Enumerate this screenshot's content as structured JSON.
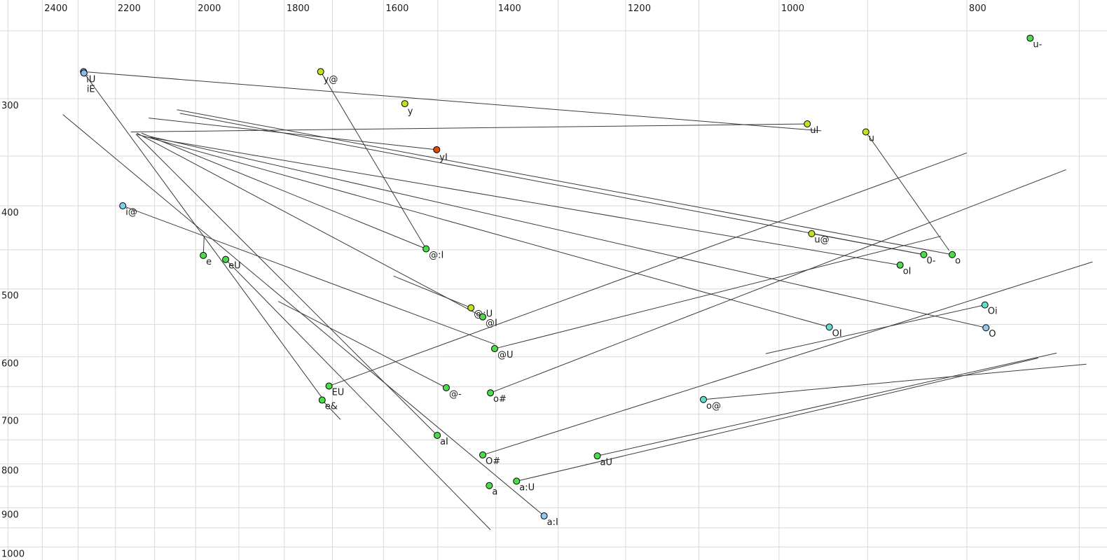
{
  "chart_data": {
    "type": "scatter",
    "title": "",
    "description": "Vowel formant chart: F2 (Hz, reversed log scale) across top axis, F1 (Hz, log scale) down left axis; diphthong onset points with straight glide trajectory lines",
    "x_axis": {
      "unit": "Hz",
      "scale": "log",
      "reversed": true,
      "min": 677,
      "max": 2510,
      "labeled_ticks": [
        2400,
        2200,
        2000,
        1800,
        1600,
        1400,
        1200,
        1000,
        800
      ],
      "grid_from": 2500,
      "grid_to": 700,
      "grid_step": 100
    },
    "y_axis": {
      "unit": "Hz",
      "scale": "log",
      "min": 248,
      "max": 1036,
      "labeled_ticks": [
        300,
        400,
        500,
        600,
        700,
        800,
        900,
        1000
      ],
      "grid_from": 250,
      "grid_to": 1000,
      "grid_step": 50
    },
    "colors": {
      "green": "#4cdb4c",
      "chartreuse": "#c2e01e",
      "turquoise": "#5fdfc8",
      "lightblue": "#90c8f0",
      "steelblue": "#8cb8e6",
      "cyanblue": "#7ed0ee",
      "redorange": "#e04a10",
      "grid": "#d9d9d9",
      "line": "#3a3a3a",
      "text": "#1a1a1a"
    },
    "points": [
      {
        "label": "iU",
        "f2": 2285,
        "f1": 279,
        "color": "steelblue",
        "label_dy": 15
      },
      {
        "label": "iE",
        "f2": 2284,
        "f1": 280,
        "color": "steelblue",
        "label_dy": 27
      },
      {
        "label": "y@",
        "f2": 1724,
        "f1": 279,
        "color": "chartreuse",
        "label_dy": 15
      },
      {
        "label": "y",
        "f2": 1560,
        "f1": 304,
        "color": "chartreuse",
        "label_dy": 15
      },
      {
        "label": "yI",
        "f2": 1502,
        "f1": 344,
        "color": "redorange",
        "label_dy": 15
      },
      {
        "label": "u-",
        "f2": 742,
        "f1": 255,
        "color": "green",
        "label_dy": 13
      },
      {
        "label": "uI",
        "f2": 967,
        "f1": 321,
        "color": "chartreuse",
        "label_dy": 13
      },
      {
        "label": "u",
        "f2": 902,
        "f1": 328,
        "color": "chartreuse",
        "label_dy": 13
      },
      {
        "label": "i@",
        "f2": 2181,
        "f1": 400,
        "color": "cyanblue",
        "label_dy": 13
      },
      {
        "label": "e",
        "f2": 1982,
        "f1": 457,
        "color": "green",
        "label_dy": 13
      },
      {
        "label": "eU",
        "f2": 1930,
        "f1": 462,
        "color": "green",
        "label_dy": 13
      },
      {
        "label": "@:I",
        "f2": 1521,
        "f1": 449,
        "color": "green",
        "label_dy": 13
      },
      {
        "label": "@:U",
        "f2": 1442,
        "f1": 526,
        "color": "chartreuse",
        "label_dy": 13
      },
      {
        "label": "@I",
        "f2": 1422,
        "f1": 539,
        "color": "green",
        "label_dy": 13
      },
      {
        "label": "@U",
        "f2": 1402,
        "f1": 587,
        "color": "green",
        "label_dy": 13
      },
      {
        "label": "u@",
        "f2": 962,
        "f1": 431,
        "color": "chartreuse",
        "label_dy": 13
      },
      {
        "label": "oI",
        "f2": 866,
        "f1": 469,
        "color": "green",
        "label_dy": 13
      },
      {
        "label": "0-",
        "f2": 842,
        "f1": 456,
        "color": "green",
        "label_dy": 13
      },
      {
        "label": "o",
        "f2": 814,
        "f1": 456,
        "color": "green",
        "label_dy": 13
      },
      {
        "label": "OI",
        "f2": 942,
        "f1": 554,
        "color": "turquoise",
        "label_dy": 13
      },
      {
        "label": "Oi",
        "f2": 783,
        "f1": 522,
        "color": "turquoise",
        "label_dy": 13
      },
      {
        "label": "O",
        "f2": 782,
        "f1": 555,
        "color": "lightblue",
        "label_dy": 13
      },
      {
        "label": "EU",
        "f2": 1707,
        "f1": 649,
        "color": "green",
        "label_dy": 13
      },
      {
        "label": "e&",
        "f2": 1721,
        "f1": 674,
        "color": "green",
        "label_dy": 13
      },
      {
        "label": "@-",
        "f2": 1485,
        "f1": 652,
        "color": "green",
        "label_dy": 13
      },
      {
        "label": "o#",
        "f2": 1409,
        "f1": 661,
        "color": "green",
        "label_dy": 13
      },
      {
        "label": "aI",
        "f2": 1501,
        "f1": 741,
        "color": "green",
        "label_dy": 13
      },
      {
        "label": "O#",
        "f2": 1422,
        "f1": 781,
        "color": "green",
        "label_dy": 13
      },
      {
        "label": "aU",
        "f2": 1241,
        "f1": 783,
        "color": "green",
        "label_dy": 13
      },
      {
        "label": "a",
        "f2": 1411,
        "f1": 848,
        "color": "green",
        "label_dy": 13
      },
      {
        "label": "a:U",
        "f2": 1366,
        "f1": 838,
        "color": "green",
        "label_dy": 13
      },
      {
        "label": "a:I",
        "f2": 1322,
        "f1": 920,
        "color": "lightblue",
        "label_dy": 13
      },
      {
        "label": "o@",
        "f2": 1094,
        "f1": 673,
        "color": "turquoise",
        "label_dy": 13
      }
    ],
    "trajectories": [
      {
        "label": "iU",
        "from": [
          2285,
          279
        ],
        "to": [
          951,
          327
        ]
      },
      {
        "label": "iE",
        "from": [
          2284,
          280
        ],
        "to": [
          1721,
          670
        ]
      },
      {
        "label": "y@",
        "from": [
          1724,
          279
        ],
        "to": [
          1521,
          449
        ]
      },
      {
        "label": "yI",
        "from": [
          1502,
          344
        ],
        "to": [
          2115,
          316
        ]
      },
      {
        "label": "uI",
        "from": [
          967,
          321
        ],
        "to": [
          2160,
          328
        ]
      },
      {
        "label": "i@",
        "from": [
          2181,
          400
        ],
        "to": [
          1402,
          580
        ]
      },
      {
        "label": "e",
        "from": [
          1982,
          457
        ],
        "to": [
          1980,
          434
        ]
      },
      {
        "label": "eU",
        "from": [
          1930,
          462
        ],
        "to": [
          1409,
          955
        ]
      },
      {
        "label": "@:I",
        "from": [
          1521,
          449
        ],
        "to": [
          2133,
          329
        ]
      },
      {
        "label": "@I",
        "from": [
          1422,
          539
        ],
        "to": [
          2145,
          329
        ]
      },
      {
        "label": "@U",
        "from": [
          1402,
          587
        ],
        "to": [
          825,
          434
        ]
      },
      {
        "label": "@:U",
        "from": [
          1442,
          526
        ],
        "to": [
          1581,
          483
        ]
      },
      {
        "label": "u@",
        "from": [
          962,
          431
        ],
        "to": [
          842,
          456
        ]
      },
      {
        "label": "u",
        "from": [
          902,
          328
        ],
        "to": [
          817,
          451
        ]
      },
      {
        "label": "oI",
        "from": [
          866,
          469
        ],
        "to": [
          2129,
          332
        ]
      },
      {
        "label": "0-",
        "from": [
          842,
          456
        ],
        "to": [
          2038,
          312
        ]
      },
      {
        "label": "o",
        "from": [
          814,
          456
        ],
        "to": [
          2045,
          309
        ]
      },
      {
        "label": "OI",
        "from": [
          942,
          554
        ],
        "to": [
          2145,
          330
        ]
      },
      {
        "label": "Oi",
        "from": [
          783,
          522
        ],
        "to": [
          1016,
          595
        ]
      },
      {
        "label": "O",
        "from": [
          782,
          555
        ],
        "to": [
          2111,
          332
        ]
      },
      {
        "label": "EU",
        "from": [
          1707,
          649
        ],
        "to": [
          800,
          347
        ]
      },
      {
        "label": "e&",
        "from": [
          1721,
          674
        ],
        "to": [
          1684,
          710
        ]
      },
      {
        "label": "@-",
        "from": [
          1485,
          652
        ],
        "to": [
          1813,
          517
        ]
      },
      {
        "label": "o#",
        "from": [
          1409,
          661
        ],
        "to": [
          711,
          363
        ]
      },
      {
        "label": "aI",
        "from": [
          1501,
          741
        ],
        "to": [
          2147,
          330
        ]
      },
      {
        "label": "O#",
        "from": [
          1422,
          781
        ],
        "to": [
          689,
          465
        ]
      },
      {
        "label": "aU",
        "from": [
          1241,
          783
        ],
        "to": [
          719,
          594
        ]
      },
      {
        "label": "a:U",
        "from": [
          1366,
          838
        ],
        "to": [
          735,
          602
        ]
      },
      {
        "label": "a:I",
        "from": [
          1322,
          920
        ],
        "to": [
          2342,
          313
        ]
      },
      {
        "label": "o@",
        "from": [
          1094,
          673
        ],
        "to": [
          694,
          612
        ]
      }
    ]
  }
}
